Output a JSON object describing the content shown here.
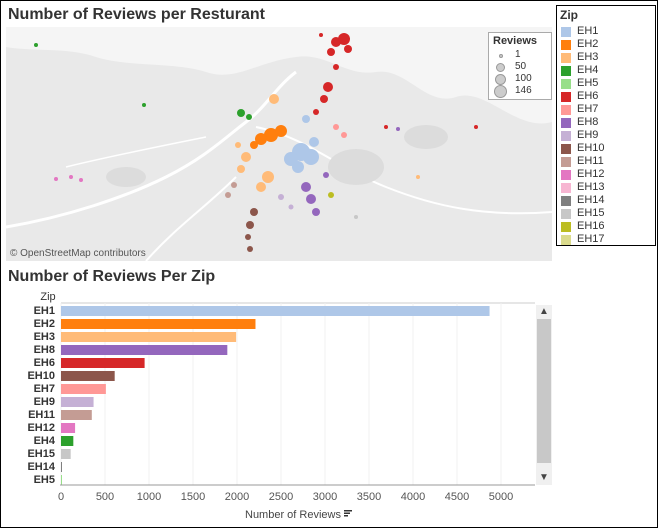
{
  "map_panel": {
    "title": "Number of Reviews per Resturant",
    "credit": "© OpenStreetMap contributors",
    "size_legend": {
      "title": "Reviews",
      "items": [
        {
          "label": "1",
          "value": 1
        },
        {
          "label": "50",
          "value": 50
        },
        {
          "label": "100",
          "value": 100
        },
        {
          "label": "146",
          "value": 146
        }
      ]
    }
  },
  "zip_legend": {
    "title": "Zip",
    "items": [
      {
        "label": "EH1",
        "color": "#aec7e8"
      },
      {
        "label": "EH2",
        "color": "#ff7f0e"
      },
      {
        "label": "EH3",
        "color": "#ffbb78"
      },
      {
        "label": "EH4",
        "color": "#2ca02c"
      },
      {
        "label": "EH5",
        "color": "#98df8a"
      },
      {
        "label": "EH6",
        "color": "#d62728"
      },
      {
        "label": "EH7",
        "color": "#ff9896"
      },
      {
        "label": "EH8",
        "color": "#9467bd"
      },
      {
        "label": "EH9",
        "color": "#c5b0d5"
      },
      {
        "label": "EH10",
        "color": "#8c564b"
      },
      {
        "label": "EH11",
        "color": "#c49c94"
      },
      {
        "label": "EH12",
        "color": "#e377c2"
      },
      {
        "label": "EH13",
        "color": "#f7b6d2"
      },
      {
        "label": "EH14",
        "color": "#7f7f7f"
      },
      {
        "label": "EH15",
        "color": "#c7c7c7"
      },
      {
        "label": "EH16",
        "color": "#bcbd22"
      },
      {
        "label": "EH17",
        "color": "#dbdb8d"
      }
    ]
  },
  "chart_data": {
    "type": "bar",
    "orientation": "horizontal",
    "title": "Number of Reviews Per Zip",
    "ylabel": "Zip",
    "xlabel": "Number of Reviews",
    "xlim": [
      0,
      5250
    ],
    "xticks": [
      0,
      500,
      1000,
      1500,
      2000,
      2500,
      3000,
      3500,
      4000,
      4500,
      5000
    ],
    "categories": [
      "EH1",
      "EH2",
      "EH3",
      "EH8",
      "EH6",
      "EH10",
      "EH7",
      "EH9",
      "EH11",
      "EH12",
      "EH4",
      "EH15",
      "EH14",
      "EH5"
    ],
    "values": [
      4870,
      2210,
      1990,
      1890,
      950,
      610,
      510,
      370,
      350,
      160,
      140,
      110,
      10,
      5
    ],
    "colors": [
      "#aec7e8",
      "#ff7f0e",
      "#ffbb78",
      "#9467bd",
      "#d62728",
      "#8c564b",
      "#ff9896",
      "#c5b0d5",
      "#c49c94",
      "#e377c2",
      "#2ca02c",
      "#c7c7c7",
      "#7f7f7f",
      "#98df8a"
    ]
  }
}
